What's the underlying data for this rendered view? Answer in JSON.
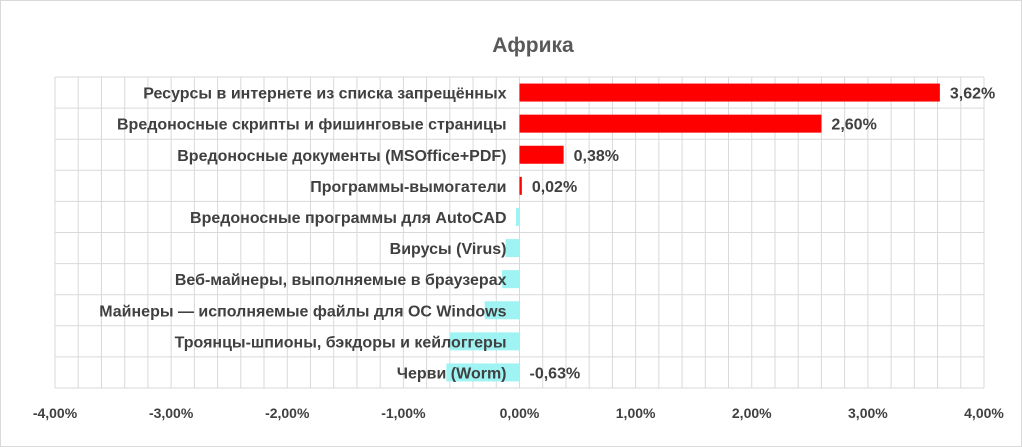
{
  "chart_data": {
    "type": "bar",
    "orientation": "horizontal",
    "title": "Африка",
    "categories": [
      "Ресурсы в интернете из списка запрещённых",
      "Вредоносные скрипты и фишинговые страницы",
      "Вредоносные документы (MSOffice+PDF)",
      "Программы-вымогатели",
      "Вредоносные программы для AutoCAD",
      "Вирусы (Virus)",
      "Веб-майнеры, выполняемые в браузерах",
      "Майнеры — исполняемые файлы для ОС Windows",
      "Троянцы-шпионы, бэкдоры и кейлоггеры",
      "Черви (Worm)"
    ],
    "values": [
      3.62,
      2.6,
      0.38,
      0.02,
      -0.03,
      -0.12,
      -0.15,
      -0.3,
      -0.6,
      -0.63
    ],
    "data_labels": [
      "3,62%",
      "2,60%",
      "0,38%",
      "0,02%",
      "",
      "",
      "",
      "",
      "",
      "-0,63%"
    ],
    "xlim": [
      -4,
      4
    ],
    "x_ticks": [
      "-4,00%",
      "-3,00%",
      "-2,00%",
      "-1,00%",
      "0,00%",
      "1,00%",
      "2,00%",
      "3,00%",
      "4,00%"
    ],
    "grid": true,
    "legend": "none",
    "colors": {
      "positive": "#ff0000",
      "negative": "#9ff3f3",
      "grid": "#d9d9d9"
    }
  }
}
